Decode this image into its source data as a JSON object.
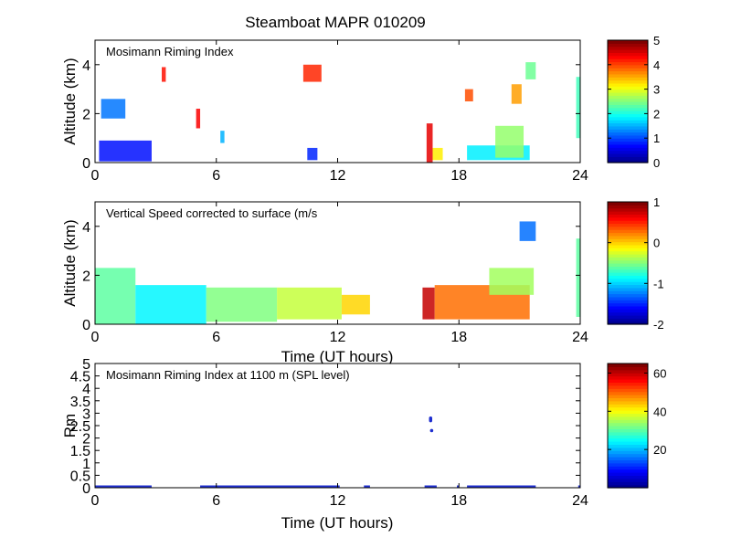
{
  "colors": {
    "axis": "#000000",
    "background": "#ffffff",
    "marker": "#1f2fd0",
    "jet": [
      "#00008f",
      "#0000ff",
      "#0080ff",
      "#00ffff",
      "#80ff80",
      "#ffff00",
      "#ff8000",
      "#ff0000",
      "#800000"
    ]
  },
  "chart_data": [
    {
      "type": "heatmap",
      "title": "Steamboat MAPR 010209",
      "label": "Mosimann Riming Index",
      "xlabel": "",
      "ylabel": "Altitude (km)",
      "xlim": [
        0,
        24
      ],
      "ylim": [
        0,
        5
      ],
      "xticks": [
        0,
        6,
        12,
        18,
        24
      ],
      "yticks": [
        0,
        2,
        4
      ],
      "colorbar": {
        "range": [
          0,
          5
        ],
        "ticks": [
          0,
          1,
          2,
          3,
          4,
          5
        ]
      },
      "patches": [
        {
          "x": [
            0.2,
            2.8
          ],
          "y": [
            0.05,
            0.9
          ],
          "value": 0.7
        },
        {
          "x": [
            0.3,
            1.5
          ],
          "y": [
            1.8,
            2.6
          ],
          "value": 1.2
        },
        {
          "x": [
            3.3,
            3.5
          ],
          "y": [
            3.3,
            3.9
          ],
          "value": 4.3
        },
        {
          "x": [
            5.0,
            5.2
          ],
          "y": [
            1.4,
            2.2
          ],
          "value": 4.4
        },
        {
          "x": [
            6.2,
            6.4
          ],
          "y": [
            0.8,
            1.3
          ],
          "value": 1.5
        },
        {
          "x": [
            10.3,
            11.2
          ],
          "y": [
            3.3,
            4.0
          ],
          "value": 4.2
        },
        {
          "x": [
            10.5,
            11.0
          ],
          "y": [
            0.1,
            0.6
          ],
          "value": 0.8
        },
        {
          "x": [
            16.4,
            16.7
          ],
          "y": [
            0.0,
            1.6
          ],
          "value": 4.5
        },
        {
          "x": [
            16.7,
            17.2
          ],
          "y": [
            0.1,
            0.6
          ],
          "value": 3.2
        },
        {
          "x": [
            18.3,
            18.7
          ],
          "y": [
            2.5,
            3.0
          ],
          "value": 4.0
        },
        {
          "x": [
            18.4,
            21.5
          ],
          "y": [
            0.1,
            0.7
          ],
          "value": 1.8
        },
        {
          "x": [
            19.8,
            21.2
          ],
          "y": [
            0.2,
            1.5
          ],
          "value": 2.6
        },
        {
          "x": [
            20.6,
            21.1
          ],
          "y": [
            2.4,
            3.2
          ],
          "value": 3.6
        },
        {
          "x": [
            21.3,
            21.8
          ],
          "y": [
            3.4,
            4.1
          ],
          "value": 2.4
        },
        {
          "x": [
            23.8,
            24.0
          ],
          "y": [
            1.0,
            3.5
          ],
          "value": 2.2
        }
      ]
    },
    {
      "type": "heatmap",
      "label": "Vertical Speed corrected to surface (m/s",
      "xlabel": "Time (UT hours)",
      "ylabel": "Altitude (km)",
      "xlim": [
        0,
        24
      ],
      "ylim": [
        0,
        5
      ],
      "xticks": [
        0,
        6,
        12,
        18,
        24
      ],
      "yticks": [
        0,
        2,
        4
      ],
      "colorbar": {
        "range": [
          -2,
          1
        ],
        "ticks": [
          -2,
          -1,
          0,
          1
        ]
      },
      "patches": [
        {
          "x": [
            0.0,
            2.0
          ],
          "y": [
            0.0,
            2.3
          ],
          "value": -0.6
        },
        {
          "x": [
            2.0,
            5.5
          ],
          "y": [
            0.0,
            1.6
          ],
          "value": -0.9
        },
        {
          "x": [
            5.5,
            9.0
          ],
          "y": [
            0.1,
            1.5
          ],
          "value": -0.5
        },
        {
          "x": [
            9.0,
            12.2
          ],
          "y": [
            0.2,
            1.5
          ],
          "value": -0.3
        },
        {
          "x": [
            12.2,
            13.6
          ],
          "y": [
            0.4,
            1.2
          ],
          "value": 0.0
        },
        {
          "x": [
            16.2,
            16.8
          ],
          "y": [
            0.2,
            1.5
          ],
          "value": 0.8
        },
        {
          "x": [
            16.8,
            21.5
          ],
          "y": [
            0.2,
            1.6
          ],
          "value": 0.3
        },
        {
          "x": [
            19.5,
            21.7
          ],
          "y": [
            1.2,
            2.3
          ],
          "value": -0.4
        },
        {
          "x": [
            21.0,
            21.8
          ],
          "y": [
            3.4,
            4.2
          ],
          "value": -1.3
        },
        {
          "x": [
            23.8,
            24.0
          ],
          "y": [
            0.3,
            3.5
          ],
          "value": -0.6
        }
      ]
    },
    {
      "type": "scatter",
      "label": "Mosimann Riming Index at 1100 m (SPL level)",
      "xlabel": "Time (UT hours)",
      "ylabel": "Rm",
      "xlim": [
        0,
        24
      ],
      "ylim": [
        0,
        5
      ],
      "xticks": [
        0,
        6,
        12,
        18,
        24
      ],
      "yticks": [
        0,
        0.5,
        1,
        1.5,
        2,
        2.5,
        3,
        3.5,
        4,
        4.5,
        5
      ],
      "ytick_labels": [
        "0",
        "0.5",
        "1",
        "1.5",
        "2",
        "2.5",
        "3",
        "3.5",
        "4",
        "4.5",
        "5"
      ],
      "colorbar": {
        "range": [
          0,
          65
        ],
        "ticks": [
          20,
          40,
          60
        ]
      },
      "segments": [
        {
          "x": [
            0.0,
            2.8
          ],
          "y": 0
        },
        {
          "x": [
            5.2,
            12.1
          ],
          "y": 0
        },
        {
          "x": [
            13.3,
            13.6
          ],
          "y": 0
        },
        {
          "x": [
            16.3,
            16.9
          ],
          "y": 0
        },
        {
          "x": [
            17.9,
            18.0
          ],
          "y": 0
        },
        {
          "x": [
            18.4,
            21.8
          ],
          "y": 0
        },
        {
          "x": [
            23.9,
            24.0
          ],
          "y": 0
        }
      ],
      "points": [
        {
          "x": 16.6,
          "y": 2.8
        },
        {
          "x": 16.6,
          "y": 2.75
        },
        {
          "x": 16.6,
          "y": 2.7
        },
        {
          "x": 16.65,
          "y": 2.3
        }
      ]
    }
  ]
}
